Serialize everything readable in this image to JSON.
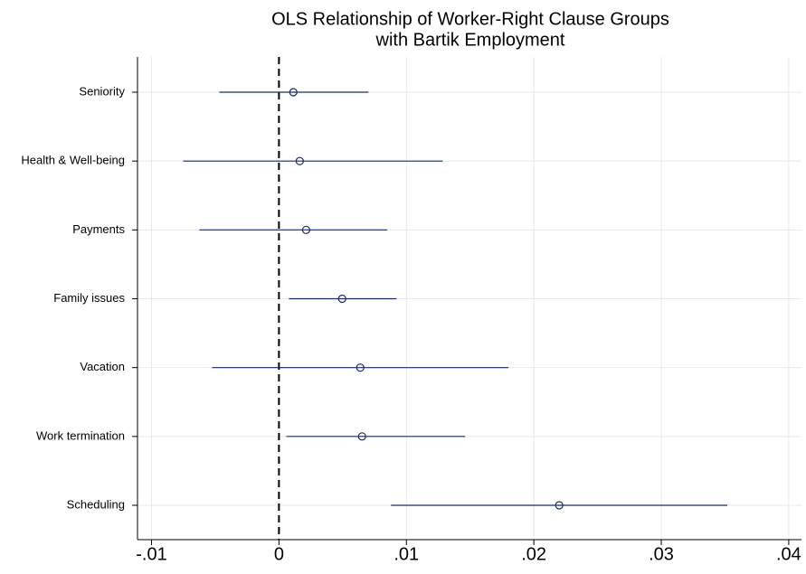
{
  "chart_data": {
    "type": "coefplot",
    "title": [
      "OLS Relationship of Worker-Right Clause Groups",
      "with Bartik Employment"
    ],
    "categories": [
      "Seniority",
      "Health & Well-being",
      "Payments",
      "Family issues",
      "Vacation",
      "Work termination",
      "Scheduling"
    ],
    "values": [
      0.00113,
      0.00163,
      0.00213,
      0.00496,
      0.00638,
      0.00652,
      0.02199
    ],
    "lower": [
      -0.00468,
      -0.00752,
      -0.00624,
      0.00078,
      -0.00525,
      0.00057,
      0.00879
    ],
    "upper": [
      0.00702,
      0.01284,
      0.00851,
      0.00922,
      0.01801,
      0.01461,
      0.03518
    ],
    "color": "#1a2a5e",
    "refline": 0,
    "xlim": [
      -0.0111,
      0.041
    ],
    "xticks": [
      {
        "value": -0.01,
        "label": "-.01"
      },
      0,
      {
        "value": 0.01,
        "label": ".01"
      },
      {
        "value": 0.02,
        "label": ".02"
      },
      {
        "value": 0.03,
        "label": ".03"
      },
      {
        "value": 0.04,
        "label": ".04"
      }
    ],
    "grid": true
  }
}
